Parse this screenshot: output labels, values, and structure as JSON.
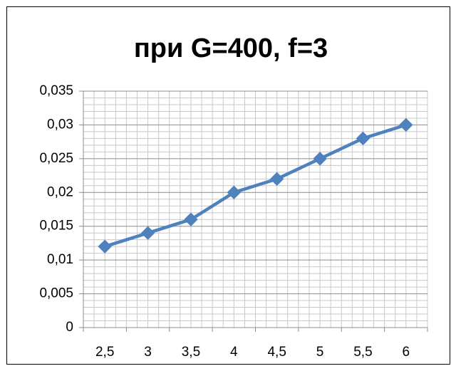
{
  "chart_data": {
    "type": "line",
    "title": "при G=400, f=3",
    "categories": [
      "2,5",
      "3",
      "3,5",
      "4",
      "4,5",
      "5",
      "5,5",
      "6"
    ],
    "series": [
      {
        "color": "#4f81bd",
        "values": [
          0.012,
          0.014,
          0.016,
          0.02,
          0.022,
          0.025,
          0.028,
          0.03
        ]
      }
    ],
    "ylim": [
      0,
      0.035
    ],
    "yticks": [
      0,
      {
        "value": 0.005,
        "label": "0,005"
      },
      {
        "value": 0.01,
        "label": "0,01"
      },
      {
        "value": 0.015,
        "label": "0,015"
      },
      {
        "value": 0.02,
        "label": "0,02"
      },
      {
        "value": 0.025,
        "label": "0,025"
      },
      {
        "value": 0.03,
        "label": "0,03"
      },
      {
        "value": 0.035,
        "label": "0,035"
      }
    ],
    "grid": true,
    "minor_grid": true
  }
}
